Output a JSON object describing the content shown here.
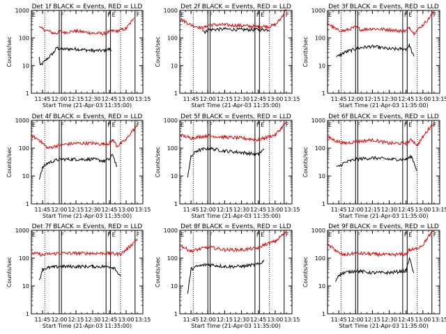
{
  "figure": {
    "background": "#ffffff",
    "series_colors": {
      "events": "#000000",
      "lld": "#e00000"
    },
    "panels": [
      {
        "title": "Det 1f BLACK = Events, RED = LLD"
      },
      {
        "title": "Det 2f BLACK = Events, RED = LLD"
      },
      {
        "title": "Det 3f BLACK = Events, RED = LLD"
      },
      {
        "title": "Det 4f BLACK = Events, RED = LLD"
      },
      {
        "title": "Det 5f BLACK = Events, RED = LLD"
      },
      {
        "title": "Det 6f BLACK = Events, RED = LLD"
      },
      {
        "title": "Det 7f BLACK = Events, RED = LLD"
      },
      {
        "title": "Det 8f BLACK = Events, RED = LLD"
      },
      {
        "title": "Det 9f BLACK = Events, RED = LLD"
      }
    ],
    "ylabel": "Counts/sec",
    "xlabel": "Start Time (21-Apr-03 11:35:00)",
    "xticks": [
      "11:45",
      "12:00",
      "12:15",
      "12:30",
      "12:45",
      "13:00",
      "13:15"
    ],
    "yticks": [
      "1",
      "10",
      "100",
      "1000"
    ],
    "marker_F": "F",
    "marker_E": "E"
  },
  "chart_data": [
    {
      "type": "line",
      "title": "Det 1f BLACK = Events, RED = LLD",
      "xlabel": "Start Time (21-Apr-03 11:35:00)",
      "ylabel": "Counts/sec",
      "y_scale": "log",
      "xlim": [
        "11:35",
        "13:15"
      ],
      "ylim": [
        1,
        1000
      ],
      "x": [
        "11:42",
        "11:43",
        "11:55",
        "11:58",
        "12:00",
        "12:05",
        "12:15",
        "12:30",
        "12:40",
        "12:45",
        "12:47",
        "12:52",
        "13:00",
        "13:05",
        "13:07"
      ],
      "series": [
        {
          "name": "Events",
          "values": [
            20,
            10,
            30,
            45,
            40,
            40,
            40,
            35,
            35,
            40,
            35,
            null,
            null,
            null,
            null
          ]
        },
        {
          "name": "LLD",
          "values": [
            300,
            230,
            150,
            150,
            180,
            160,
            180,
            150,
            145,
            170,
            180,
            180,
            220,
            400,
            600
          ]
        }
      ],
      "vlines_solid": [
        "12:00",
        "12:02",
        "12:42",
        "12:46",
        "13:08"
      ],
      "vlines_dotted": [
        "11:47",
        "12:55"
      ]
    },
    {
      "type": "line",
      "title": "Det 2f BLACK = Events, RED = LLD",
      "xlabel": "Start Time (21-Apr-03 11:35:00)",
      "ylabel": "Counts/sec",
      "y_scale": "log",
      "xlim": [
        "11:35",
        "13:15"
      ],
      "ylim": [
        1,
        1000
      ],
      "x": [
        "11:35",
        "11:45",
        "11:55",
        "11:58",
        "12:00",
        "12:15",
        "12:30",
        "12:45",
        "12:50",
        "12:55",
        "13:00",
        "13:05",
        "13:10"
      ],
      "series": [
        {
          "name": "Events",
          "values": [
            null,
            null,
            200,
            160,
            200,
            210,
            200,
            200,
            200,
            200,
            null,
            null,
            null
          ]
        },
        {
          "name": "LLD",
          "values": [
            500,
            300,
            230,
            250,
            300,
            300,
            280,
            260,
            270,
            260,
            300,
            500,
            1200
          ]
        }
      ],
      "vlines_solid": [
        "12:00",
        "12:02",
        "12:42",
        "12:46",
        "13:08"
      ],
      "vlines_dotted": [
        "11:47",
        "12:55"
      ]
    },
    {
      "type": "line",
      "title": "Det 3f BLACK = Events, RED = LLD",
      "xlabel": "Start Time (21-Apr-03 11:35:00)",
      "ylabel": "Counts/sec",
      "y_scale": "log",
      "xlim": [
        "11:35",
        "13:15"
      ],
      "ylim": [
        1,
        1000
      ],
      "x": [
        "11:35",
        "11:43",
        "11:50",
        "12:00",
        "12:05",
        "12:15",
        "12:30",
        "12:40",
        "12:45",
        "12:48",
        "12:52",
        "13:00",
        "13:05",
        "13:10"
      ],
      "series": [
        {
          "name": "Events",
          "values": [
            null,
            20,
            30,
            40,
            45,
            50,
            40,
            40,
            40,
            55,
            20,
            null,
            null,
            null
          ]
        },
        {
          "name": "LLD",
          "values": [
            350,
            200,
            180,
            250,
            200,
            220,
            200,
            180,
            180,
            250,
            150,
            300,
            500,
            900
          ]
        }
      ],
      "vlines_solid": [
        "12:00",
        "12:02",
        "12:42",
        "12:46",
        "13:08"
      ],
      "vlines_dotted": [
        "11:47",
        "12:55"
      ]
    },
    {
      "type": "line",
      "title": "Det 4f BLACK = Events, RED = LLD",
      "xlabel": "Start Time (21-Apr-03 11:35:00)",
      "ylabel": "Counts/sec",
      "y_scale": "log",
      "xlim": [
        "11:35",
        "13:15"
      ],
      "ylim": [
        1,
        1000
      ],
      "x": [
        "11:35",
        "11:42",
        "11:45",
        "11:50",
        "12:00",
        "12:15",
        "12:30",
        "12:40",
        "12:45",
        "12:48",
        "12:52",
        "13:00",
        "13:05",
        "13:10"
      ],
      "series": [
        {
          "name": "Events",
          "values": [
            null,
            8,
            20,
            30,
            40,
            40,
            40,
            35,
            40,
            60,
            20,
            null,
            null,
            null
          ]
        },
        {
          "name": "LLD",
          "values": [
            280,
            200,
            150,
            100,
            130,
            150,
            150,
            140,
            150,
            200,
            120,
            200,
            400,
            600
          ]
        }
      ],
      "vlines_solid": [
        "12:00",
        "12:02",
        "12:42",
        "12:46",
        "13:08"
      ],
      "vlines_dotted": [
        "11:47",
        "12:55"
      ]
    },
    {
      "type": "line",
      "title": "Det 5f BLACK = Events, RED = LLD",
      "xlabel": "Start Time (21-Apr-03 11:35:00)",
      "ylabel": "Counts/sec",
      "y_scale": "log",
      "xlim": [
        "11:35",
        "13:15"
      ],
      "ylim": [
        1,
        1000
      ],
      "x": [
        "11:35",
        "11:42",
        "11:45",
        "11:50",
        "12:00",
        "12:15",
        "12:30",
        "12:45",
        "12:50",
        "13:00",
        "13:05",
        "13:10"
      ],
      "series": [
        {
          "name": "Events",
          "values": [
            null,
            10,
            50,
            80,
            100,
            80,
            70,
            60,
            90,
            null,
            null,
            null
          ]
        },
        {
          "name": "LLD",
          "values": [
            300,
            250,
            230,
            250,
            280,
            250,
            230,
            200,
            230,
            300,
            500,
            900
          ]
        }
      ],
      "vlines_solid": [
        "12:00",
        "12:02",
        "12:42",
        "12:46",
        "13:08"
      ],
      "vlines_dotted": [
        "11:47",
        "12:55"
      ]
    },
    {
      "type": "line",
      "title": "Det 6f BLACK = Events, RED = LLD",
      "xlabel": "Start Time (21-Apr-03 11:35:00)",
      "ylabel": "Counts/sec",
      "y_scale": "log",
      "xlim": [
        "11:35",
        "13:15"
      ],
      "ylim": [
        1,
        1000
      ],
      "x": [
        "11:35",
        "11:43",
        "11:50",
        "12:00",
        "12:15",
        "12:30",
        "12:45",
        "12:50",
        "12:55",
        "13:00",
        "13:05",
        "13:10"
      ],
      "series": [
        {
          "name": "Events",
          "values": [
            null,
            20,
            30,
            40,
            45,
            40,
            40,
            50,
            15,
            null,
            null,
            null
          ]
        },
        {
          "name": "LLD",
          "values": [
            250,
            180,
            150,
            170,
            200,
            150,
            150,
            200,
            130,
            250,
            500,
            800
          ]
        }
      ],
      "vlines_solid": [
        "12:00",
        "12:02",
        "12:42",
        "12:46",
        "13:08"
      ],
      "vlines_dotted": [
        "11:47",
        "12:55"
      ]
    },
    {
      "type": "line",
      "title": "Det 7f BLACK = Events, RED = LLD",
      "xlabel": "Start Time (21-Apr-03 11:35:00)",
      "ylabel": "Counts/sec",
      "y_scale": "log",
      "xlim": [
        "11:35",
        "13:15"
      ],
      "ylim": [
        1,
        1000
      ],
      "x": [
        "11:35",
        "11:42",
        "11:45",
        "11:50",
        "12:00",
        "12:15",
        "12:30",
        "12:45",
        "12:50",
        "12:55",
        "13:00",
        "13:05",
        "13:10"
      ],
      "series": [
        {
          "name": "Events",
          "values": [
            null,
            15,
            40,
            45,
            50,
            50,
            50,
            50,
            45,
            20,
            null,
            null,
            null
          ]
        },
        {
          "name": "LLD",
          "values": [
            150,
            140,
            130,
            140,
            150,
            150,
            150,
            150,
            140,
            140,
            200,
            300,
            500
          ]
        }
      ],
      "vlines_solid": [
        "12:00",
        "12:02",
        "12:42",
        "12:46",
        "13:08"
      ],
      "vlines_dotted": [
        "11:47",
        "12:55"
      ]
    },
    {
      "type": "line",
      "title": "Det 8f BLACK = Events, RED = LLD",
      "xlabel": "Start Time (21-Apr-03 11:35:00)",
      "ylabel": "Counts/sec",
      "y_scale": "log",
      "xlim": [
        "11:35",
        "13:15"
      ],
      "ylim": [
        1,
        1000
      ],
      "x": [
        "11:35",
        "11:42",
        "11:45",
        "11:50",
        "12:00",
        "12:15",
        "12:30",
        "12:45",
        "12:50",
        "13:00",
        "13:05",
        "13:10"
      ],
      "series": [
        {
          "name": "Events",
          "values": [
            null,
            5,
            40,
            50,
            60,
            50,
            50,
            60,
            80,
            null,
            null,
            null
          ]
        },
        {
          "name": "LLD",
          "values": [
            300,
            200,
            180,
            200,
            250,
            200,
            200,
            230,
            300,
            400,
            600,
            900
          ]
        }
      ],
      "vlines_solid": [
        "12:00",
        "12:02",
        "12:42",
        "12:46",
        "13:08"
      ],
      "vlines_dotted": [
        "11:47",
        "12:55"
      ]
    },
    {
      "type": "line",
      "title": "Det 9f BLACK = Events, RED = LLD",
      "xlabel": "Start Time (21-Apr-03 11:35:00)",
      "ylabel": "Counts/sec",
      "y_scale": "log",
      "xlim": [
        "11:35",
        "13:15"
      ],
      "ylim": [
        1,
        1000
      ],
      "x": [
        "11:35",
        "11:42",
        "11:45",
        "11:50",
        "12:00",
        "12:15",
        "12:30",
        "12:45",
        "12:48",
        "12:52",
        "13:00",
        "13:05",
        "13:10"
      ],
      "series": [
        {
          "name": "Events",
          "values": [
            null,
            15,
            25,
            30,
            35,
            30,
            30,
            35,
            100,
            30,
            null,
            null,
            null
          ]
        },
        {
          "name": "LLD",
          "values": [
            300,
            200,
            150,
            130,
            150,
            140,
            130,
            140,
            200,
            200,
            300,
            600,
            1000
          ]
        }
      ],
      "vlines_solid": [
        "12:00",
        "12:02",
        "12:42",
        "12:46",
        "13:08"
      ],
      "vlines_dotted": [
        "11:47",
        "12:55"
      ]
    }
  ]
}
